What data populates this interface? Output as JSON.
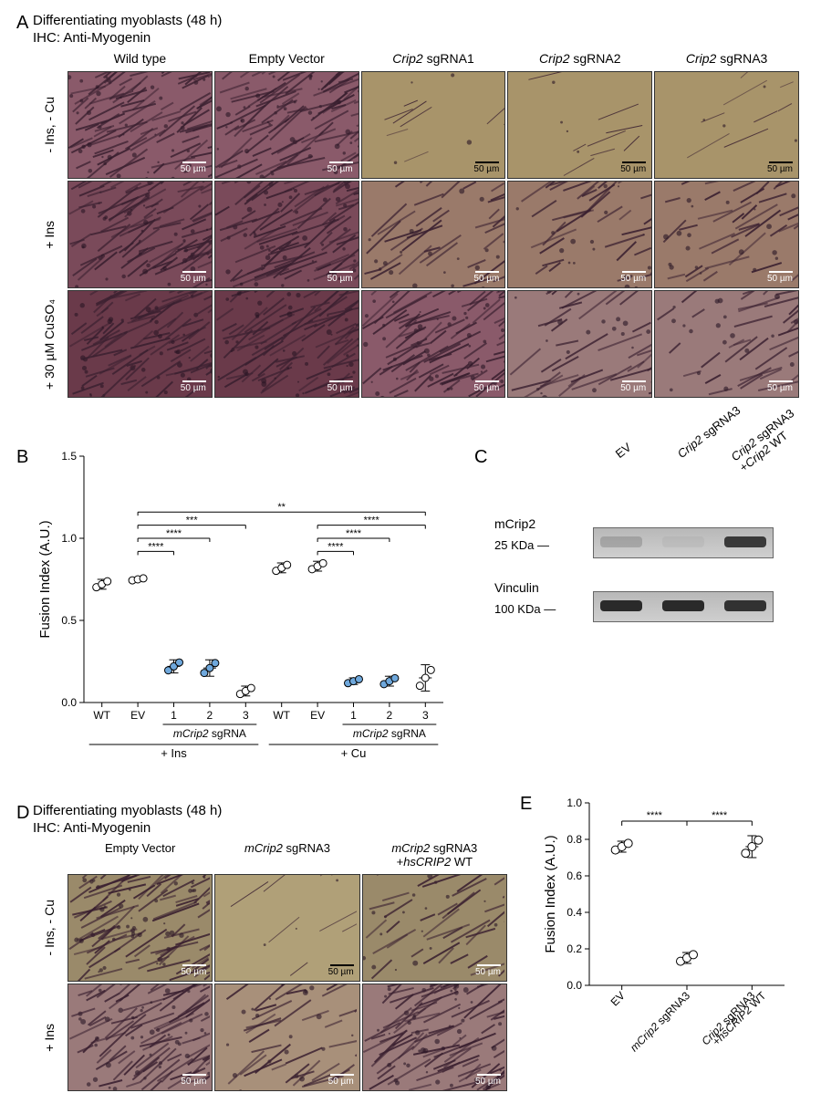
{
  "panelA": {
    "label": "A",
    "title_line1": "Differentiating myoblasts (48 h)",
    "title_line2": "IHC: Anti-Myogenin",
    "columns": [
      "Wild type",
      "Empty Vector",
      "Crip2 sgRNA1",
      "Crip2 sgRNA2",
      "Crip2 sgRNA3"
    ],
    "col_italic": [
      false,
      false,
      true,
      true,
      true
    ],
    "rows": [
      "- Ins, - Cu",
      "+ Ins",
      "+ 30 µM CuSO₄"
    ],
    "scale_label": "50 µm",
    "images": [
      [
        {
          "bg": "#8a5a6a",
          "density": "high"
        },
        {
          "bg": "#8a5a6a",
          "density": "high"
        },
        {
          "bg": "#a8946a",
          "density": "sparse"
        },
        {
          "bg": "#a8946a",
          "density": "sparse"
        },
        {
          "bg": "#a8946a",
          "density": "sparse"
        }
      ],
      [
        {
          "bg": "#7a4a5a",
          "density": "high"
        },
        {
          "bg": "#7a4a5a",
          "density": "high"
        },
        {
          "bg": "#9a7a6a",
          "density": "medium"
        },
        {
          "bg": "#9a7a6a",
          "density": "medium"
        },
        {
          "bg": "#9a7a6a",
          "density": "medium"
        }
      ],
      [
        {
          "bg": "#6a3a4a",
          "density": "high"
        },
        {
          "bg": "#6a3a4a",
          "density": "high"
        },
        {
          "bg": "#8a5a6a",
          "density": "high"
        },
        {
          "bg": "#9a7a7a",
          "density": "medium"
        },
        {
          "bg": "#9a7a7a",
          "density": "medium"
        }
      ]
    ]
  },
  "panelB": {
    "label": "B",
    "ylabel": "Fusion Index (A.U.)",
    "ylim": [
      0,
      1.5
    ],
    "yticks": [
      0.0,
      0.5,
      1.0,
      1.5
    ],
    "groups": [
      "WT",
      "EV",
      "1",
      "2",
      "3",
      "WT",
      "EV",
      "1",
      "2",
      "3"
    ],
    "group_labels": {
      "left": "+ Ins",
      "right": "+ Cu",
      "sub": "mCrip2 sgRNA"
    },
    "means": [
      0.72,
      0.75,
      0.22,
      0.21,
      0.07,
      0.82,
      0.83,
      0.13,
      0.13,
      0.15
    ],
    "err": [
      0.03,
      0.01,
      0.04,
      0.05,
      0.03,
      0.03,
      0.03,
      0.02,
      0.03,
      0.08
    ],
    "point_colors": [
      "#ffffff",
      "#ffffff",
      "#6fa8dc",
      "#6fa8dc",
      "#ffffff",
      "#ffffff",
      "#ffffff",
      "#6fa8dc",
      "#6fa8dc",
      "#ffffff"
    ],
    "sig": [
      {
        "from": 1,
        "to": 2,
        "label": "****",
        "y": 0.92
      },
      {
        "from": 1,
        "to": 3,
        "label": "****",
        "y": 1.0
      },
      {
        "from": 1,
        "to": 4,
        "label": "***",
        "y": 1.08
      },
      {
        "from": 1,
        "to": 9,
        "label": "**",
        "y": 1.16
      },
      {
        "from": 6,
        "to": 7,
        "label": "****",
        "y": 0.92
      },
      {
        "from": 6,
        "to": 8,
        "label": "****",
        "y": 1.0
      },
      {
        "from": 6,
        "to": 9,
        "label": "****",
        "y": 1.08
      }
    ]
  },
  "panelC": {
    "label": "C",
    "lanes": [
      "EV",
      "Crip2 sgRNA3",
      "Crip2 sgRNA3\n+Crip2 WT"
    ],
    "lane_italic": [
      false,
      true,
      true
    ],
    "rows": [
      {
        "label": "mCrip2",
        "marker": "25 KDa",
        "bands": [
          0.2,
          0.05,
          0.9
        ]
      },
      {
        "label": "Vinculin",
        "marker": "100 KDa",
        "bands": [
          1.0,
          1.0,
          0.95
        ]
      }
    ]
  },
  "panelD": {
    "label": "D",
    "title_line1": "Differentiating myoblasts (48 h)",
    "title_line2": "IHC: Anti-Myogenin",
    "columns": [
      "Empty Vector",
      "mCrip2 sgRNA3",
      "mCrip2 sgRNA3\n+hsCRIP2 WT"
    ],
    "col_italic": [
      false,
      true,
      true
    ],
    "rows": [
      "- Ins, - Cu",
      "+ Ins"
    ],
    "scale_label": "50 µm",
    "images": [
      [
        {
          "bg": "#9a8a6a",
          "density": "high"
        },
        {
          "bg": "#b0a078",
          "density": "sparse"
        },
        {
          "bg": "#9a8a6a",
          "density": "medium"
        }
      ],
      [
        {
          "bg": "#9a7a7a",
          "density": "high"
        },
        {
          "bg": "#a8907a",
          "density": "medium"
        },
        {
          "bg": "#9a7a7a",
          "density": "high"
        }
      ]
    ]
  },
  "panelE": {
    "label": "E",
    "ylabel": "Fusion Index (A.U.)",
    "ylim": [
      0,
      1.0
    ],
    "yticks": [
      0.0,
      0.2,
      0.4,
      0.6,
      0.8,
      1.0
    ],
    "groups": [
      "EV",
      "mCrip2 sgRNA3",
      "Crip2 sgRNA3\n+hsCRIP2 WT"
    ],
    "group_italic": [
      false,
      true,
      true
    ],
    "means": [
      0.76,
      0.15,
      0.76
    ],
    "err": [
      0.03,
      0.03,
      0.06
    ],
    "point_colors": [
      "#ffffff",
      "#ffffff",
      "#ffffff"
    ],
    "sig": [
      {
        "from": 0,
        "to": 1,
        "label": "****",
        "y": 0.9
      },
      {
        "from": 1,
        "to": 2,
        "label": "****",
        "y": 0.9
      }
    ]
  }
}
